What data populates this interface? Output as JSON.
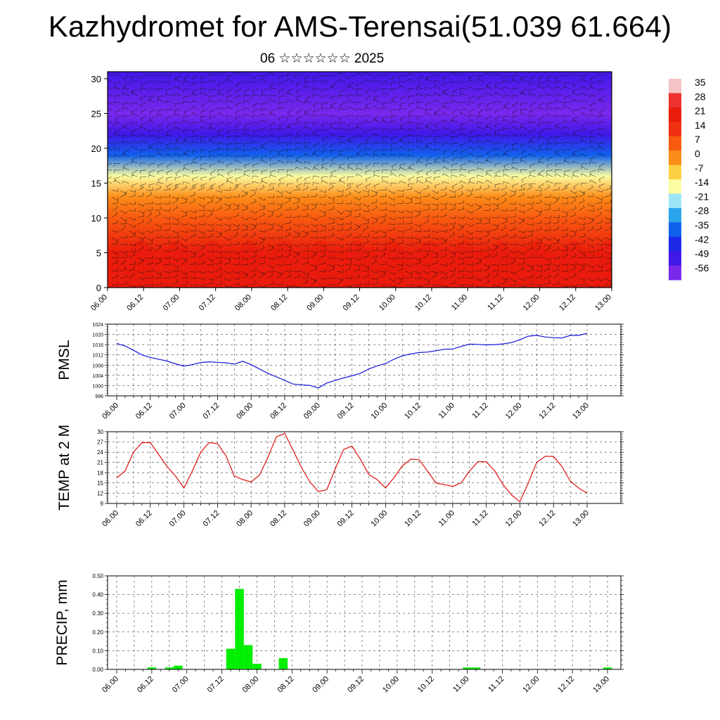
{
  "title": "Kazhydromet for AMS-Terensai(51.039 61.664)",
  "subtitle": "06 ☆☆☆☆☆☆ 2025",
  "time_ticks": [
    "06.00",
    "06.12",
    "07.00",
    "07.12",
    "08.00",
    "08.12",
    "09.00",
    "09.12",
    "10.00",
    "10.12",
    "11.00",
    "11.12",
    "12.00",
    "12.12",
    "13.00"
  ],
  "colorbar": {
    "labels": [
      "35",
      "28",
      "21",
      "14",
      "7",
      "0",
      "-7",
      "-14",
      "-21",
      "-28",
      "-35",
      "-42",
      "-49",
      "-56"
    ],
    "colors": [
      "#f4c4c4",
      "#ee3030",
      "#ea1c0c",
      "#f03010",
      "#f85a10",
      "#fc8c18",
      "#fcd040",
      "#fcfca0",
      "#9ee4f8",
      "#2aa4ec",
      "#1060ec",
      "#1c28e8",
      "#4018e8",
      "#7a28ec"
    ]
  },
  "chart_data": [
    {
      "type": "heatmap",
      "name": "cross-section",
      "ylabel": "",
      "yticks": [
        "0",
        "5",
        "10",
        "15",
        "20",
        "25",
        "30"
      ],
      "ylim": [
        0,
        31
      ],
      "xlim": [
        "06.00",
        "13.00"
      ],
      "description_levels": [
        {
          "level": 0,
          "value": 21
        },
        {
          "level": 5,
          "value": 18
        },
        {
          "level": 10,
          "value": 6
        },
        {
          "level": 13,
          "value": -3
        },
        {
          "level": 16,
          "value": -15
        },
        {
          "level": 19,
          "value": -35
        },
        {
          "level": 22,
          "value": -50
        },
        {
          "level": 25,
          "value": -56
        },
        {
          "level": 31,
          "value": -52
        }
      ],
      "colors": {
        "low": "#ea1c0c",
        "mid": "#fcd040",
        "cold": "#1c28e8",
        "top": "#7a28ec"
      }
    },
    {
      "type": "line",
      "ylabel": "PMSL",
      "yticks": [
        "996",
        "1000",
        "1004",
        "1008",
        "1012",
        "1016",
        "1020",
        "1024"
      ],
      "ylim": [
        996,
        1024
      ],
      "color": "#1414dc",
      "x": [
        "06.00",
        "06.03",
        "06.06",
        "06.09",
        "06.12",
        "06.15",
        "06.18",
        "06.21",
        "07.00",
        "07.03",
        "07.06",
        "07.09",
        "07.12",
        "07.15",
        "07.18",
        "07.21",
        "08.00",
        "08.03",
        "08.06",
        "08.09",
        "08.12",
        "08.15",
        "08.18",
        "08.21",
        "09.00",
        "09.03",
        "09.06",
        "09.09",
        "09.12",
        "09.15",
        "09.18",
        "09.21",
        "10.00",
        "10.03",
        "10.06",
        "10.09",
        "10.12",
        "10.15",
        "10.18",
        "10.21",
        "11.00",
        "11.03",
        "11.06",
        "11.09",
        "11.12",
        "11.15",
        "11.18",
        "11.21",
        "12.00",
        "12.03",
        "12.06",
        "12.09",
        "12.12",
        "12.15",
        "12.18",
        "12.21",
        "13.00"
      ],
      "values": [
        1016.5,
        1015.5,
        1013.8,
        1012.0,
        1011.0,
        1010.3,
        1009.6,
        1008.5,
        1007.6,
        1008.2,
        1009.0,
        1009.3,
        1009.1,
        1008.9,
        1008.4,
        1009.5,
        1008.2,
        1006.5,
        1004.8,
        1003.4,
        1002.0,
        1000.6,
        1000.3,
        1000.1,
        999.1,
        1001.0,
        1002.0,
        1003.0,
        1003.8,
        1004.8,
        1006.5,
        1007.7,
        1008.6,
        1010.3,
        1011.6,
        1012.4,
        1012.9,
        1013.1,
        1013.6,
        1014.2,
        1014.3,
        1015.3,
        1016.2,
        1016.1,
        1015.9,
        1016.0,
        1016.3,
        1016.8,
        1017.9,
        1019.3,
        1019.6,
        1019.0,
        1018.7,
        1018.6,
        1019.6,
        1019.6,
        1020.4
      ]
    },
    {
      "type": "line",
      "ylabel": "TEMP at 2 M",
      "yticks": [
        "9",
        "12",
        "15",
        "18",
        "21",
        "24",
        "27",
        "30"
      ],
      "ylim": [
        9,
        30
      ],
      "color": "#e01010",
      "x": [
        "06.00",
        "06.03",
        "06.06",
        "06.09",
        "06.12",
        "06.15",
        "06.18",
        "06.21",
        "07.00",
        "07.03",
        "07.06",
        "07.09",
        "07.12",
        "07.15",
        "07.18",
        "07.21",
        "08.00",
        "08.03",
        "08.06",
        "08.09",
        "08.12",
        "08.15",
        "08.18",
        "08.21",
        "09.00",
        "09.03",
        "09.06",
        "09.09",
        "09.12",
        "09.15",
        "09.18",
        "09.21",
        "10.00",
        "10.03",
        "10.06",
        "10.09",
        "10.12",
        "10.15",
        "10.18",
        "10.21",
        "11.00",
        "11.03",
        "11.06",
        "11.09",
        "11.12",
        "11.15",
        "11.18",
        "11.21",
        "12.00",
        "12.03",
        "12.06",
        "12.09",
        "12.12",
        "12.15",
        "12.18",
        "12.21",
        "13.00"
      ],
      "values": [
        16.5,
        18.5,
        24.0,
        26.8,
        26.8,
        23.3,
        19.8,
        17.0,
        13.5,
        18.5,
        24.0,
        26.8,
        26.5,
        23.0,
        17.0,
        16.0,
        15.3,
        17.3,
        22.5,
        28.5,
        29.5,
        24.5,
        19.5,
        15.3,
        12.5,
        13.0,
        19.0,
        24.8,
        25.8,
        22.0,
        17.5,
        16.0,
        13.5,
        16.5,
        20.0,
        22.0,
        21.8,
        18.5,
        15.0,
        14.5,
        14.0,
        15.0,
        18.5,
        21.2,
        21.2,
        18.5,
        14.5,
        11.5,
        9.5,
        15.0,
        21.0,
        22.8,
        22.8,
        19.8,
        15.5,
        13.5,
        12.0
      ]
    },
    {
      "type": "bar",
      "ylabel": "PRECIP, mm",
      "yticks": [
        "0.00",
        "0.10",
        "0.20",
        "0.30",
        "0.40",
        "0.50"
      ],
      "ylim": [
        0,
        0.5
      ],
      "color": "#00ee00",
      "x": [
        "06.12",
        "06.18",
        "06.21",
        "07.15",
        "07.18",
        "07.21",
        "08.00",
        "08.09",
        "11.00",
        "11.03",
        "13.00"
      ],
      "values": [
        0.01,
        0.01,
        0.02,
        0.11,
        0.43,
        0.13,
        0.03,
        0.06,
        0.01,
        0.01,
        0.01
      ]
    }
  ]
}
